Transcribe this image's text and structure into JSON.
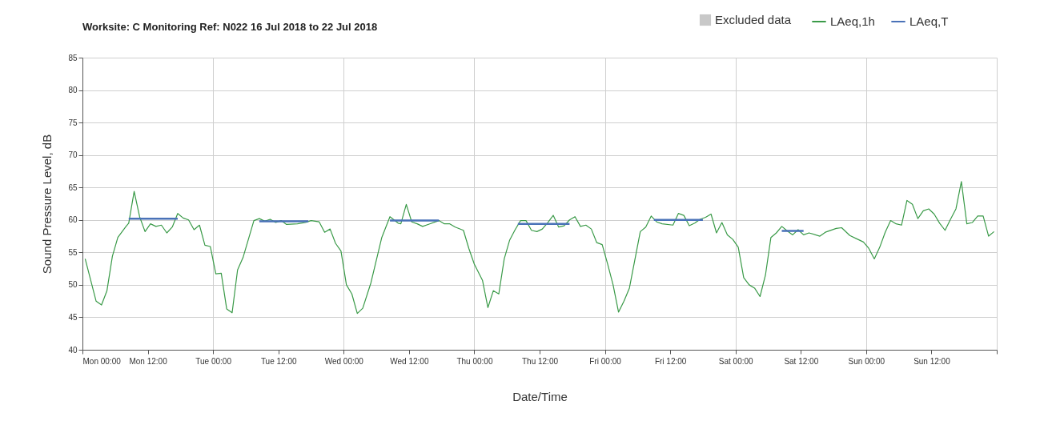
{
  "chart_data": {
    "type": "line",
    "title": "Worksite: C   Monitoring Ref: N022      16 Jul 2018 to 22 Jul 2018",
    "xlabel": "Date/Time",
    "ylabel": "Sound Pressure Level, dB",
    "xlim": [
      "2018-07-16T00:00",
      "2018-07-23T00:00"
    ],
    "ylim": [
      40,
      85
    ],
    "yticks": [
      40,
      45,
      50,
      55,
      60,
      65,
      70,
      75,
      80,
      85
    ],
    "xticks": [
      {
        "value": "2018-07-16T00:00",
        "label": "Mon 00:00"
      },
      {
        "value": "2018-07-16T12:00",
        "label": "Mon 12:00"
      },
      {
        "value": "2018-07-17T00:00",
        "label": "Tue 00:00"
      },
      {
        "value": "2018-07-17T12:00",
        "label": "Tue 12:00"
      },
      {
        "value": "2018-07-18T00:00",
        "label": "Wed 00:00"
      },
      {
        "value": "2018-07-18T12:00",
        "label": "Wed 12:00"
      },
      {
        "value": "2018-07-19T00:00",
        "label": "Thu 00:00"
      },
      {
        "value": "2018-07-19T12:00",
        "label": "Thu 12:00"
      },
      {
        "value": "2018-07-20T00:00",
        "label": "Fri 00:00"
      },
      {
        "value": "2018-07-20T12:00",
        "label": "Fri 12:00"
      },
      {
        "value": "2018-07-21T00:00",
        "label": "Sat 00:00"
      },
      {
        "value": "2018-07-21T12:00",
        "label": "Sat 12:00"
      },
      {
        "value": "2018-07-22T00:00",
        "label": "Sun 00:00"
      },
      {
        "value": "2018-07-22T12:00",
        "label": "Sun 12:00"
      },
      {
        "value": "2018-07-23T00:00",
        "label": null
      }
    ],
    "grid": true,
    "legend": "top right",
    "series": [
      {
        "name": "Excluded data",
        "type": "area",
        "color": "#c8c8c8"
      },
      {
        "name": "LAeq,1h",
        "color": "#3a9a48",
        "x": [
          "2018-07-16T00:30",
          "2018-07-16T02:30",
          "2018-07-16T03:30",
          "2018-07-16T04:30",
          "2018-07-16T05:30",
          "2018-07-16T06:30",
          "2018-07-16T08:00",
          "2018-07-16T08:30",
          "2018-07-16T09:30",
          "2018-07-16T10:30",
          "2018-07-16T11:30",
          "2018-07-16T12:30",
          "2018-07-16T13:30",
          "2018-07-16T14:30",
          "2018-07-16T15:30",
          "2018-07-16T16:30",
          "2018-07-16T17:30",
          "2018-07-16T18:30",
          "2018-07-16T19:30",
          "2018-07-16T20:30",
          "2018-07-16T21:30",
          "2018-07-16T22:30",
          "2018-07-16T23:30",
          "2018-07-17T00:30",
          "2018-07-17T01:30",
          "2018-07-17T02:30",
          "2018-07-17T03:30",
          "2018-07-17T04:30",
          "2018-07-17T05:30",
          "2018-07-17T07:30",
          "2018-07-17T08:30",
          "2018-07-17T09:30",
          "2018-07-17T10:30",
          "2018-07-17T11:30",
          "2018-07-17T12:30",
          "2018-07-17T13:30",
          "2018-07-17T15:30",
          "2018-07-17T17:00",
          "2018-07-17T18:00",
          "2018-07-17T19:30",
          "2018-07-17T20:30",
          "2018-07-17T21:30",
          "2018-07-17T22:30",
          "2018-07-17T23:30",
          "2018-07-18T00:30",
          "2018-07-18T01:30",
          "2018-07-18T02:30",
          "2018-07-18T03:30",
          "2018-07-18T05:00",
          "2018-07-18T07:00",
          "2018-07-18T08:30",
          "2018-07-18T10:00",
          "2018-07-18T10:30",
          "2018-07-18T11:30",
          "2018-07-18T12:30",
          "2018-07-18T13:30",
          "2018-07-18T14:30",
          "2018-07-18T15:30",
          "2018-07-18T17:30",
          "2018-07-18T18:30",
          "2018-07-18T19:30",
          "2018-07-18T20:30",
          "2018-07-18T22:00",
          "2018-07-18T23:00",
          "2018-07-19T00:00",
          "2018-07-19T01:30",
          "2018-07-19T02:30",
          "2018-07-19T03:30",
          "2018-07-19T04:30",
          "2018-07-19T05:30",
          "2018-07-19T06:30",
          "2018-07-19T07:30",
          "2018-07-19T08:30",
          "2018-07-19T09:30",
          "2018-07-19T10:30",
          "2018-07-19T11:30",
          "2018-07-19T12:30",
          "2018-07-19T13:30",
          "2018-07-19T14:30",
          "2018-07-19T15:30",
          "2018-07-19T16:30",
          "2018-07-19T17:30",
          "2018-07-19T18:30",
          "2018-07-19T19:30",
          "2018-07-19T20:30",
          "2018-07-19T21:30",
          "2018-07-19T22:30",
          "2018-07-19T23:30",
          "2018-07-20T00:30",
          "2018-07-20T01:30",
          "2018-07-20T02:30",
          "2018-07-20T03:30",
          "2018-07-20T04:30",
          "2018-07-20T06:30",
          "2018-07-20T07:30",
          "2018-07-20T08:30",
          "2018-07-20T09:30",
          "2018-07-20T10:30",
          "2018-07-20T12:30",
          "2018-07-20T13:30",
          "2018-07-20T14:30",
          "2018-07-20T15:30",
          "2018-07-20T16:30",
          "2018-07-20T17:30",
          "2018-07-20T18:30",
          "2018-07-20T19:30",
          "2018-07-20T20:30",
          "2018-07-20T21:30",
          "2018-07-20T22:30",
          "2018-07-20T23:30",
          "2018-07-21T00:30",
          "2018-07-21T01:30",
          "2018-07-21T02:30",
          "2018-07-21T03:30",
          "2018-07-21T04:30",
          "2018-07-21T05:30",
          "2018-07-21T06:30",
          "2018-07-21T07:30",
          "2018-07-21T08:30",
          "2018-07-21T09:30",
          "2018-07-21T10:30",
          "2018-07-21T11:30",
          "2018-07-21T12:30",
          "2018-07-21T13:30",
          "2018-07-21T15:30",
          "2018-07-21T16:30",
          "2018-07-21T18:30",
          "2018-07-21T19:30",
          "2018-07-21T21:00",
          "2018-07-21T22:30",
          "2018-07-21T23:30",
          "2018-07-22T00:30",
          "2018-07-22T01:30",
          "2018-07-22T02:30",
          "2018-07-22T03:30",
          "2018-07-22T04:30",
          "2018-07-22T05:30",
          "2018-07-22T06:30",
          "2018-07-22T07:30",
          "2018-07-22T08:30",
          "2018-07-22T09:30",
          "2018-07-22T10:30",
          "2018-07-22T11:30",
          "2018-07-22T12:30",
          "2018-07-22T13:30",
          "2018-07-22T14:30",
          "2018-07-22T15:30",
          "2018-07-22T16:30",
          "2018-07-22T17:30",
          "2018-07-22T18:30",
          "2018-07-22T19:30",
          "2018-07-22T20:30",
          "2018-07-22T21:30",
          "2018-07-22T22:30",
          "2018-07-22T23:30"
        ],
        "values": [
          54.0,
          47.5,
          46.9,
          49.1,
          54.4,
          57.3,
          59.0,
          59.5,
          64.4,
          60.5,
          58.2,
          59.4,
          59.0,
          59.2,
          58.0,
          58.9,
          61.0,
          60.3,
          60.0,
          58.5,
          59.2,
          56.1,
          55.9,
          51.7,
          51.8,
          46.3,
          45.7,
          52.3,
          54.2,
          59.9,
          60.2,
          59.8,
          60.1,
          59.6,
          59.9,
          59.3,
          59.4,
          59.6,
          59.9,
          59.7,
          58.1,
          58.6,
          56.4,
          55.2,
          50.0,
          48.6,
          45.6,
          46.4,
          50.3,
          57.3,
          60.5,
          59.5,
          59.4,
          62.4,
          59.7,
          59.4,
          59.0,
          59.3,
          59.9,
          59.4,
          59.4,
          58.9,
          58.4,
          55.6,
          53.2,
          50.7,
          46.5,
          49.1,
          48.6,
          54.0,
          56.9,
          58.5,
          59.9,
          59.9,
          58.4,
          58.2,
          58.6,
          59.6,
          60.7,
          58.9,
          59.1,
          60.0,
          60.5,
          59.0,
          59.2,
          58.6,
          56.5,
          56.2,
          53.2,
          50.0,
          45.8,
          47.5,
          49.5,
          58.2,
          58.9,
          60.6,
          59.7,
          59.4,
          59.2,
          61.0,
          60.7,
          59.1,
          59.5,
          60.1,
          60.4,
          60.9,
          58.0,
          59.6,
          57.7,
          57.0,
          55.8,
          51.1,
          50.0,
          49.5,
          48.2,
          51.5,
          57.3,
          58.0,
          59.0,
          58.3,
          57.7,
          58.5,
          57.7,
          58.0,
          57.5,
          58.1,
          58.7,
          58.8,
          57.6,
          57.0,
          56.6,
          55.6,
          54.0,
          55.8,
          58.1,
          59.9,
          59.4,
          59.2,
          63.0,
          62.4,
          60.2,
          61.4,
          61.7,
          60.9,
          59.5,
          58.4,
          60.1,
          61.7,
          65.9,
          59.4,
          59.6,
          60.6,
          60.6,
          57.5,
          58.2
        ]
      },
      {
        "name": "LAeq,T",
        "color": "#4a72b8",
        "x": [
          "2018-07-16T08:30",
          "2018-07-16T17:30",
          "2018-07-17T01:00",
          "2018-07-17T08:30",
          "2018-07-17T17:30",
          "2018-07-18T01:00",
          "2018-07-18T08:30",
          "2018-07-18T17:30",
          "2018-07-19T00:00",
          "2018-07-19T08:00",
          "2018-07-19T17:30",
          "2018-07-20T01:00",
          "2018-07-20T09:00",
          "2018-07-20T18:00",
          "2018-07-21T01:00",
          "2018-07-21T08:30",
          "2018-07-21T12:30"
        ],
        "values": [
          60.2,
          60.2,
          null,
          59.8,
          59.8,
          null,
          59.9,
          59.9,
          null,
          59.4,
          59.4,
          null,
          60.0,
          60.0,
          null,
          58.3,
          58.3
        ]
      }
    ]
  }
}
